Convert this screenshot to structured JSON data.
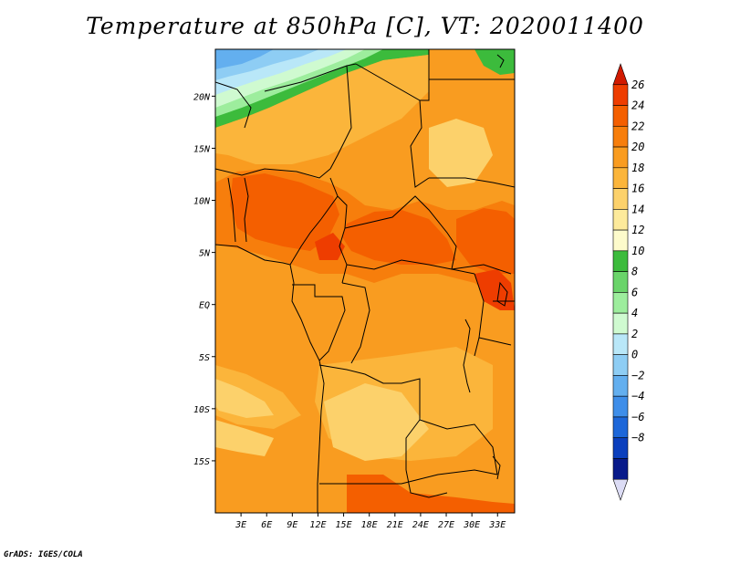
{
  "chart_data": {
    "type": "heatmap",
    "title": "Temperature at 850hPa [C], VT: 2020011400",
    "variable": "Temperature at 850hPa",
    "units": "C",
    "valid_time": "2020011400",
    "x_ticks": [
      "3E",
      "6E",
      "9E",
      "12E",
      "15E",
      "18E",
      "21E",
      "24E",
      "27E",
      "30E",
      "33E"
    ],
    "x_tick_values": [
      3,
      6,
      9,
      12,
      15,
      18,
      21,
      24,
      27,
      30,
      33
    ],
    "y_ticks": [
      "20N",
      "15N",
      "10N",
      "5N",
      "EQ",
      "5S",
      "10S",
      "15S"
    ],
    "y_tick_values": [
      20,
      15,
      10,
      5,
      0,
      -5,
      -10,
      -15
    ],
    "xlim": [
      0,
      35
    ],
    "ylim": [
      -20,
      24.5
    ],
    "colorbar_levels": [
      26,
      24,
      22,
      20,
      18,
      16,
      14,
      12,
      10,
      8,
      6,
      4,
      2,
      0,
      -2,
      -4,
      -6,
      -8
    ],
    "colorbar_labels": [
      "26",
      "24",
      "22",
      "20",
      "18",
      "16",
      "14",
      "12",
      "10",
      "8",
      "6",
      "4",
      "2",
      "0",
      "−2",
      "−4",
      "−6",
      "−8"
    ],
    "colorbar_colors": [
      "#d11a00",
      "#ee3d00",
      "#f45f00",
      "#f77e0c",
      "#f99c20",
      "#fbb53b",
      "#fcd16b",
      "#fdea9b",
      "#fdfbcb",
      "#3cbb3c",
      "#6ad46a",
      "#9ded9d",
      "#cffad0",
      "#b9e7f8",
      "#8ecdf4",
      "#63afef",
      "#3e8ee9",
      "#1d67d9",
      "#0b3fbd",
      "#081a8a",
      "#dcdcf5"
    ]
  },
  "footer": "GrADS: IGES/COLA"
}
